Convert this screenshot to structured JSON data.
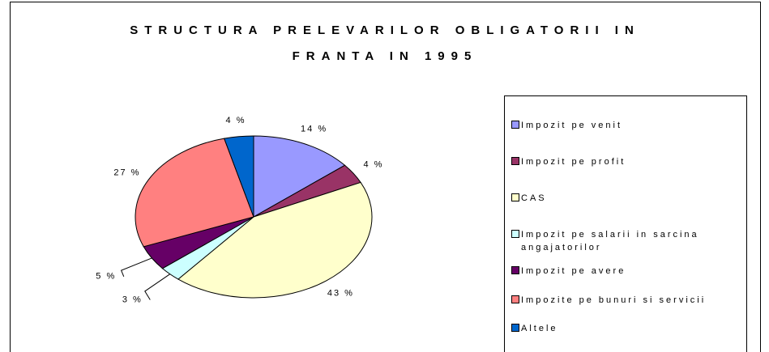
{
  "chart_data": {
    "type": "pie",
    "title": "STRUCTURA PRELEVARILOR OBLIGATORII IN FRANTA IN 1995",
    "categories": [
      "Impozit pe venit",
      "Impozit pe profit",
      "CAS",
      "Impozit pe salarii in sarcina angajatorilor",
      "Impozit pe avere",
      "Impozite pe bunuri si servicii",
      "Altele"
    ],
    "values": [
      14,
      4,
      43,
      3,
      5,
      27,
      4
    ],
    "value_labels": [
      "14 %",
      "4 %",
      "43 %",
      "3 %",
      "5 %",
      "27 %",
      "4 %"
    ],
    "colors": [
      "#9999ff",
      "#993366",
      "#ffffcc",
      "#ccffff",
      "#660066",
      "#ff8080",
      "#0066cc"
    ],
    "legend": "right"
  }
}
